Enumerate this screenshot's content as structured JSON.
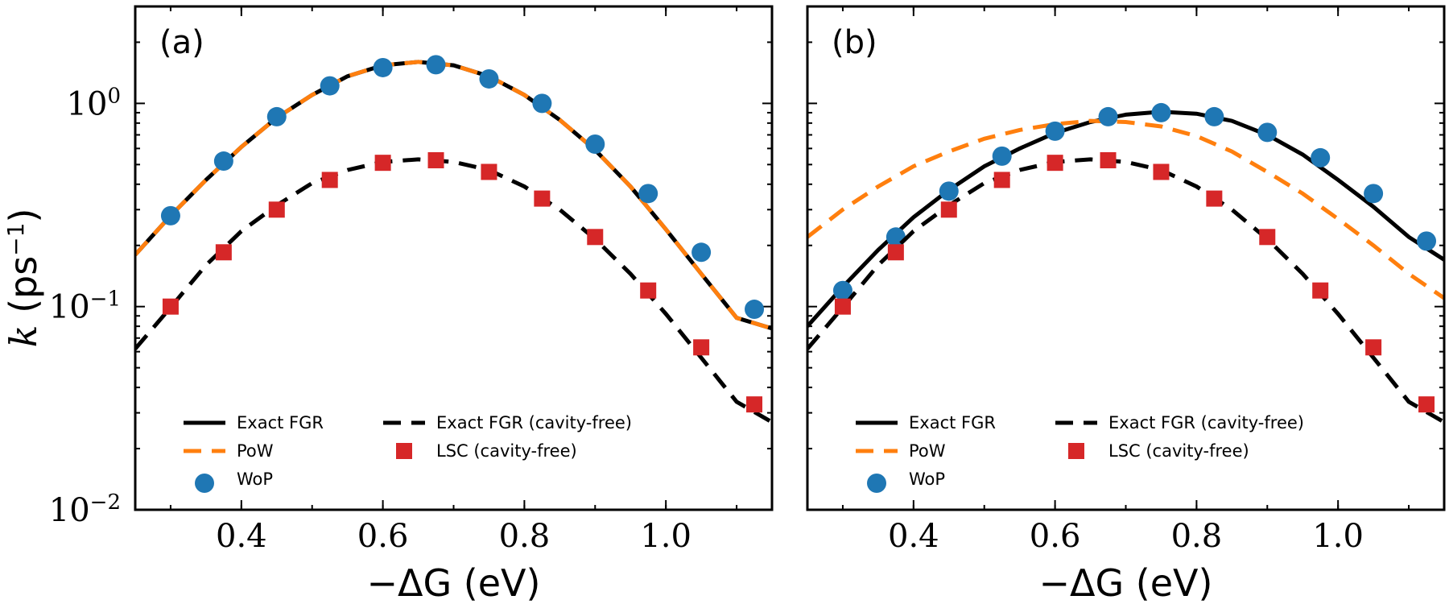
{
  "figure": {
    "xlabel": "−ΔG (eV)",
    "ylabel": "k (ps⁻¹)",
    "colors": {
      "exact": "#000000",
      "pow": "#ff7f0e",
      "wop": "#1f77b4",
      "lsc": "#d62728"
    }
  },
  "chart_data": [
    {
      "type": "line",
      "panel_label": "(a)",
      "title": "",
      "xlabel": "−ΔG (eV)",
      "ylabel": "k (ps⁻¹)",
      "xlim": [
        0.25,
        1.15
      ],
      "ylim": [
        0.01,
        3.0
      ],
      "yscale": "log",
      "x_ticks": [
        "0.4",
        "0.6",
        "0.8",
        "1.0"
      ],
      "y_ticks": [
        "10^-2",
        "10^-1",
        "10^0"
      ],
      "legend_position": "bottom",
      "series": [
        {
          "name": "Exact FGR",
          "style": "solid",
          "x": [
            0.25,
            0.3,
            0.35,
            0.4,
            0.45,
            0.5,
            0.55,
            0.6,
            0.65,
            0.7,
            0.75,
            0.8,
            0.85,
            0.9,
            0.95,
            1.0,
            1.05,
            1.1,
            1.15
          ],
          "y": [
            0.18,
            0.28,
            0.42,
            0.61,
            0.85,
            1.1,
            1.36,
            1.54,
            1.6,
            1.54,
            1.36,
            1.1,
            0.83,
            0.59,
            0.39,
            0.24,
            0.145,
            0.088,
            0.078
          ]
        },
        {
          "name": "PoW",
          "style": "dashed",
          "x": [
            0.25,
            0.3,
            0.35,
            0.4,
            0.45,
            0.5,
            0.55,
            0.6,
            0.65,
            0.7,
            0.75,
            0.8,
            0.85,
            0.9,
            0.95,
            1.0,
            1.05,
            1.1,
            1.15
          ],
          "y": [
            0.18,
            0.28,
            0.42,
            0.61,
            0.85,
            1.1,
            1.36,
            1.54,
            1.6,
            1.54,
            1.36,
            1.1,
            0.83,
            0.59,
            0.39,
            0.24,
            0.145,
            0.088,
            0.078
          ]
        },
        {
          "name": "WoP",
          "style": "markers",
          "x": [
            0.3,
            0.375,
            0.45,
            0.525,
            0.6,
            0.675,
            0.75,
            0.825,
            0.9,
            0.975,
            1.05,
            1.125
          ],
          "y": [
            0.28,
            0.52,
            0.86,
            1.22,
            1.5,
            1.55,
            1.32,
            1.0,
            0.63,
            0.36,
            0.185,
            0.097
          ]
        },
        {
          "name": "Exact FGR (cavity-free)",
          "style": "dashdot",
          "x": [
            0.25,
            0.3,
            0.35,
            0.4,
            0.45,
            0.5,
            0.55,
            0.6,
            0.65,
            0.7,
            0.75,
            0.8,
            0.85,
            0.9,
            0.95,
            1.0,
            1.05,
            1.1,
            1.15
          ],
          "y": [
            0.062,
            0.099,
            0.16,
            0.235,
            0.315,
            0.405,
            0.47,
            0.515,
            0.53,
            0.515,
            0.47,
            0.39,
            0.3,
            0.215,
            0.145,
            0.092,
            0.056,
            0.034,
            0.027
          ]
        },
        {
          "name": "LSC (cavity-free)",
          "style": "markers",
          "x": [
            0.3,
            0.375,
            0.45,
            0.525,
            0.6,
            0.675,
            0.75,
            0.825,
            0.9,
            0.975,
            1.05,
            1.125
          ],
          "y": [
            0.1,
            0.185,
            0.3,
            0.42,
            0.51,
            0.525,
            0.46,
            0.34,
            0.22,
            0.12,
            0.063,
            0.033
          ]
        }
      ]
    },
    {
      "type": "line",
      "panel_label": "(b)",
      "title": "",
      "xlabel": "−ΔG (eV)",
      "ylabel": "",
      "xlim": [
        0.25,
        1.15
      ],
      "ylim": [
        0.01,
        3.0
      ],
      "yscale": "log",
      "x_ticks": [
        "0.4",
        "0.6",
        "0.8",
        "1.0"
      ],
      "legend_position": "bottom",
      "series": [
        {
          "name": "Exact FGR",
          "style": "solid",
          "x": [
            0.25,
            0.3,
            0.35,
            0.4,
            0.45,
            0.5,
            0.55,
            0.6,
            0.65,
            0.7,
            0.75,
            0.8,
            0.85,
            0.9,
            0.95,
            1.0,
            1.05,
            1.1,
            1.15
          ],
          "y": [
            0.08,
            0.125,
            0.19,
            0.275,
            0.375,
            0.49,
            0.6,
            0.715,
            0.81,
            0.88,
            0.91,
            0.89,
            0.82,
            0.7,
            0.56,
            0.42,
            0.31,
            0.22,
            0.17
          ]
        },
        {
          "name": "PoW",
          "style": "dashed",
          "x": [
            0.25,
            0.3,
            0.35,
            0.4,
            0.45,
            0.5,
            0.55,
            0.6,
            0.65,
            0.7,
            0.75,
            0.8,
            0.85,
            0.9,
            0.95,
            1.0,
            1.05,
            1.1,
            1.15
          ],
          "y": [
            0.22,
            0.3,
            0.39,
            0.49,
            0.58,
            0.67,
            0.74,
            0.79,
            0.82,
            0.81,
            0.77,
            0.69,
            0.58,
            0.46,
            0.36,
            0.27,
            0.2,
            0.145,
            0.11
          ]
        },
        {
          "name": "WoP",
          "style": "markers",
          "x": [
            0.3,
            0.375,
            0.45,
            0.525,
            0.6,
            0.675,
            0.75,
            0.825,
            0.9,
            0.975,
            1.05,
            1.125
          ],
          "y": [
            0.12,
            0.22,
            0.37,
            0.55,
            0.73,
            0.86,
            0.9,
            0.86,
            0.72,
            0.54,
            0.36,
            0.21
          ]
        },
        {
          "name": "Exact FGR (cavity-free)",
          "style": "dashdot",
          "x": [
            0.25,
            0.3,
            0.35,
            0.4,
            0.45,
            0.5,
            0.55,
            0.6,
            0.65,
            0.7,
            0.75,
            0.8,
            0.85,
            0.9,
            0.95,
            1.0,
            1.05,
            1.1,
            1.15
          ],
          "y": [
            0.062,
            0.099,
            0.16,
            0.235,
            0.315,
            0.405,
            0.47,
            0.515,
            0.53,
            0.515,
            0.47,
            0.39,
            0.3,
            0.215,
            0.145,
            0.092,
            0.056,
            0.034,
            0.027
          ]
        },
        {
          "name": "LSC (cavity-free)",
          "style": "markers",
          "x": [
            0.3,
            0.375,
            0.45,
            0.525,
            0.6,
            0.675,
            0.75,
            0.825,
            0.9,
            0.975,
            1.05,
            1.125
          ],
          "y": [
            0.1,
            0.185,
            0.3,
            0.42,
            0.51,
            0.525,
            0.46,
            0.34,
            0.22,
            0.12,
            0.063,
            0.033
          ]
        }
      ]
    }
  ]
}
